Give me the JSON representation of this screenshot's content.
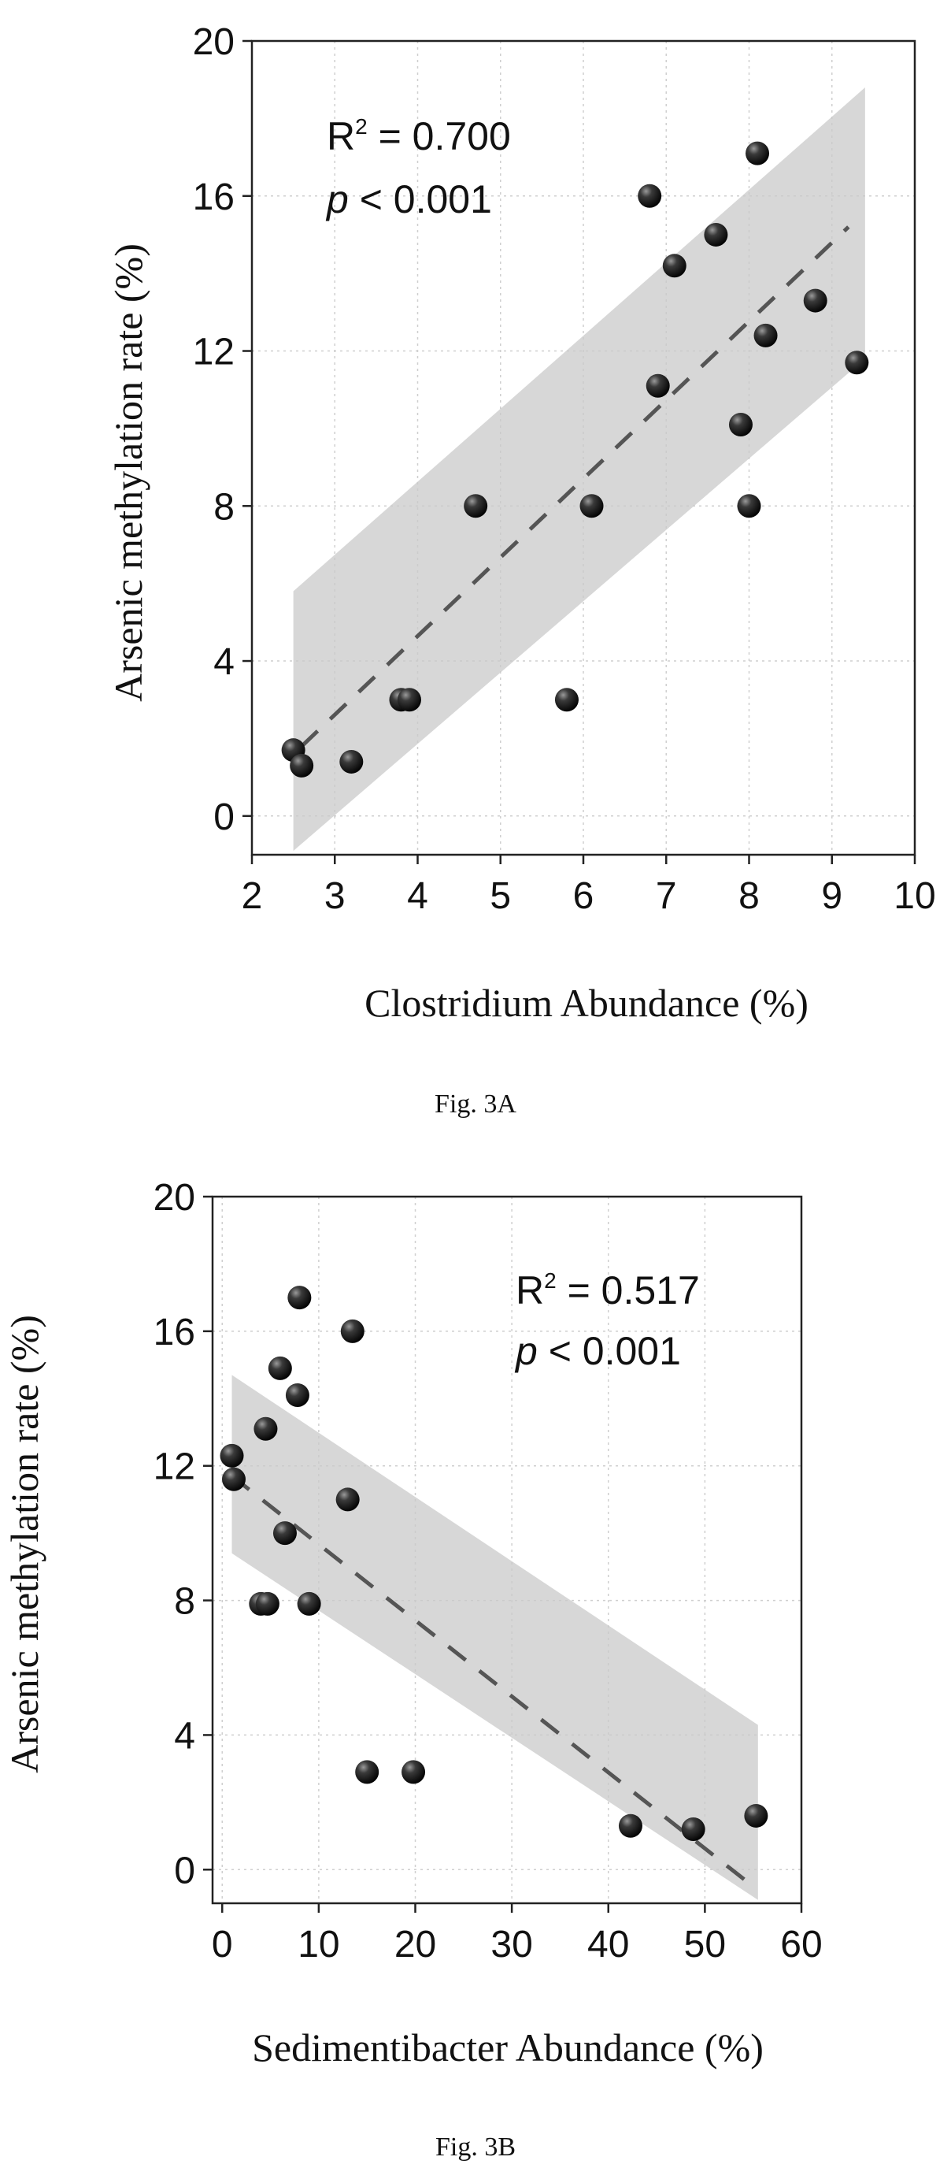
{
  "chart_data": [
    {
      "type": "scatter",
      "xlabel": "Clostridium Abundance (%)",
      "ylabel": "Arsenic methylation rate (%)",
      "annotation": {
        "r2_label": "R",
        "r2_sup": "2",
        "r2_value": " = 0.700",
        "p_label": "p",
        "p_value": " < 0.001"
      },
      "caption": "Fig. 3A",
      "xlim": [
        2,
        10
      ],
      "ylim": [
        -1,
        20
      ],
      "xticks": [
        2,
        3,
        4,
        5,
        6,
        7,
        8,
        9,
        10
      ],
      "yticks": [
        0,
        4,
        8,
        12,
        16,
        20
      ],
      "grid": true,
      "fit_line": {
        "x": [
          2.6,
          9.2
        ],
        "y": [
          1.8,
          15.2
        ]
      },
      "confidence_band": {
        "x": [
          2.5,
          9.4
        ],
        "upper": [
          5.8,
          18.8
        ],
        "lower": [
          -0.9,
          11.8
        ]
      },
      "points": [
        {
          "x": 2.5,
          "y": 1.7
        },
        {
          "x": 2.6,
          "y": 1.3
        },
        {
          "x": 3.2,
          "y": 1.4
        },
        {
          "x": 3.8,
          "y": 3.0
        },
        {
          "x": 3.9,
          "y": 3.0
        },
        {
          "x": 4.7,
          "y": 8.0
        },
        {
          "x": 5.8,
          "y": 3.0
        },
        {
          "x": 6.1,
          "y": 8.0
        },
        {
          "x": 6.8,
          "y": 16.0
        },
        {
          "x": 6.9,
          "y": 11.1
        },
        {
          "x": 7.1,
          "y": 14.2
        },
        {
          "x": 7.6,
          "y": 15.0
        },
        {
          "x": 7.9,
          "y": 10.1
        },
        {
          "x": 8.0,
          "y": 8.0
        },
        {
          "x": 8.1,
          "y": 17.1
        },
        {
          "x": 8.2,
          "y": 12.4
        },
        {
          "x": 8.8,
          "y": 13.3
        },
        {
          "x": 9.3,
          "y": 11.7
        }
      ]
    },
    {
      "type": "scatter",
      "xlabel": "Sedimentibacter Abundance (%)",
      "ylabel": "Arsenic methylation rate (%)",
      "annotation": {
        "r2_label": "R",
        "r2_sup": "2",
        "r2_value": " = 0.517",
        "p_label": "p",
        "p_value": " < 0.001"
      },
      "caption": "Fig. 3B",
      "xlim": [
        -1,
        60
      ],
      "ylim": [
        -1,
        20
      ],
      "xticks": [
        0,
        10,
        20,
        30,
        40,
        50,
        60
      ],
      "yticks": [
        0,
        4,
        8,
        12,
        16,
        20
      ],
      "grid": true,
      "fit_line": {
        "x": [
          1,
          55
        ],
        "y": [
          11.7,
          -0.5
        ]
      },
      "confidence_band": {
        "x": [
          1,
          55.5
        ],
        "upper": [
          14.7,
          4.3
        ],
        "lower": [
          9.4,
          -0.9
        ]
      },
      "points": [
        {
          "x": 1,
          "y": 12.3
        },
        {
          "x": 1.2,
          "y": 11.6
        },
        {
          "x": 4,
          "y": 7.9
        },
        {
          "x": 4.5,
          "y": 13.1
        },
        {
          "x": 4.7,
          "y": 7.9
        },
        {
          "x": 6,
          "y": 14.9
        },
        {
          "x": 6.5,
          "y": 10.0
        },
        {
          "x": 7.8,
          "y": 14.1
        },
        {
          "x": 8,
          "y": 17.0
        },
        {
          "x": 9,
          "y": 7.9
        },
        {
          "x": 13,
          "y": 11.0
        },
        {
          "x": 13.5,
          "y": 16.0
        },
        {
          "x": 15,
          "y": 2.9
        },
        {
          "x": 19.8,
          "y": 2.9
        },
        {
          "x": 42.3,
          "y": 1.3
        },
        {
          "x": 48.8,
          "y": 1.2
        },
        {
          "x": 55.3,
          "y": 1.6
        }
      ]
    }
  ]
}
